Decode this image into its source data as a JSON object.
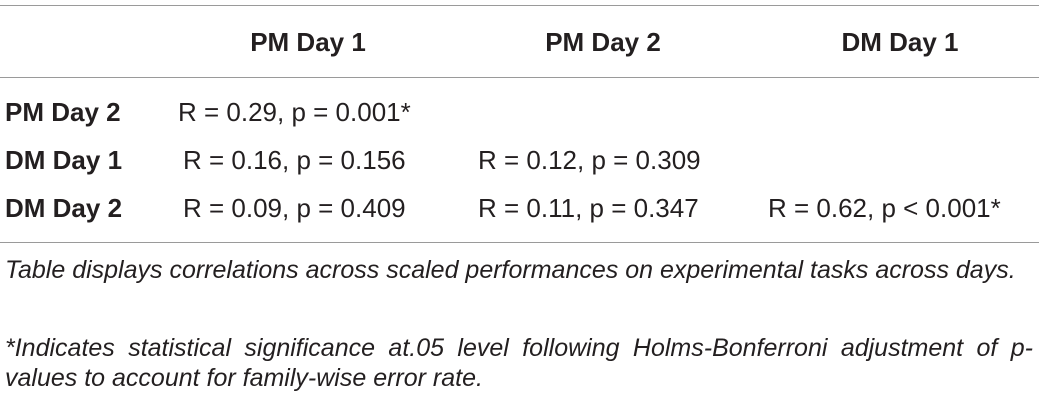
{
  "table": {
    "header": [
      null,
      "PM Day 1",
      "PM Day 2",
      "DM Day 1"
    ],
    "rows": [
      [
        "PM Day 2",
        "R = 0.29, p = 0.001*",
        null,
        null
      ],
      [
        "DM Day 1",
        "R = 0.16, p = 0.156",
        "R = 0.12, p = 0.309",
        null
      ],
      [
        "DM Day 2",
        "R = 0.09, p = 0.409",
        "R = 0.11, p = 0.347",
        "R = 0.62, p < 0.001*"
      ]
    ],
    "notes": [
      "Table displays correlations across scaled performances on experimental tasks across days.",
      "*Indicates statistical significance at.05 level following Holms-Bonferroni adjustment of p-values to account for family-wise error rate."
    ]
  }
}
